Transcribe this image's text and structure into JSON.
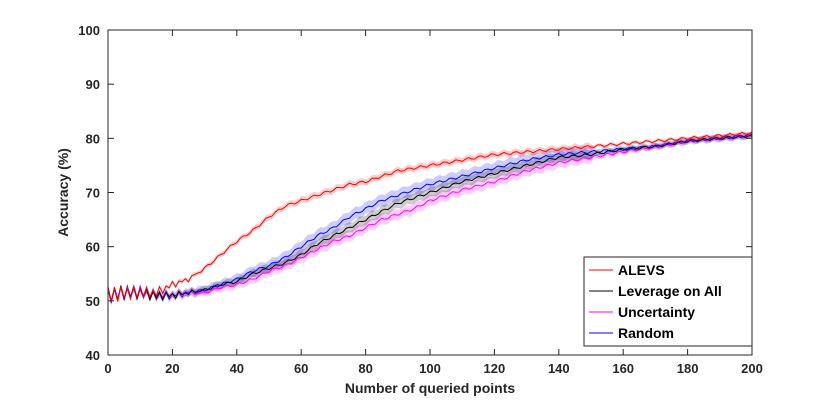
{
  "chart_data": {
    "type": "line",
    "title": "",
    "xlabel": "Number of queried points",
    "ylabel": "Accuracy (%)",
    "xlim": [
      0,
      200
    ],
    "ylim": [
      40,
      100
    ],
    "xticks": [
      0,
      20,
      40,
      60,
      80,
      100,
      120,
      140,
      160,
      180,
      200
    ],
    "yticks": [
      40,
      50,
      60,
      70,
      80,
      90,
      100
    ],
    "grid": false,
    "legend_position": "bottom-right",
    "x": [
      0,
      5,
      10,
      15,
      20,
      25,
      30,
      35,
      40,
      45,
      50,
      55,
      60,
      65,
      70,
      75,
      80,
      85,
      90,
      95,
      100,
      110,
      120,
      130,
      140,
      150,
      160,
      170,
      180,
      190,
      200
    ],
    "series": [
      {
        "name": "ALEVS",
        "color": "#ff0000",
        "values": [
          51,
          51.5,
          51.5,
          51.5,
          53,
          54,
          56,
          58.5,
          61,
          63,
          65.5,
          67.5,
          68.5,
          69.5,
          70.5,
          71.5,
          72,
          73,
          74,
          74.5,
          75,
          76,
          77,
          77.5,
          78,
          78.5,
          79,
          79.5,
          80,
          80.5,
          81
        ],
        "band": 0.6
      },
      {
        "name": "Leverage on All",
        "color": "#000000",
        "values": [
          51,
          51.5,
          51.5,
          51,
          51,
          51.5,
          52,
          53,
          53.5,
          55,
          56,
          57,
          58.5,
          60.5,
          62,
          63.5,
          65,
          66.5,
          68,
          69,
          70,
          72,
          73.5,
          75,
          76.5,
          77,
          78,
          78.5,
          79.5,
          80,
          80.5
        ],
        "band": 0.9
      },
      {
        "name": "Uncertainty",
        "color": "#ff00ff",
        "values": [
          51,
          51.5,
          51.5,
          51,
          51,
          51.5,
          51.5,
          52.5,
          53,
          54,
          55.5,
          56.5,
          58,
          59.5,
          61,
          62,
          63.5,
          65,
          66,
          67,
          68.5,
          70.5,
          72,
          74,
          75.5,
          76.5,
          77.5,
          78.5,
          79.5,
          80,
          80.5
        ],
        "band": 1.0
      },
      {
        "name": "Random",
        "color": "#0000ff",
        "values": [
          51,
          51.5,
          51.5,
          51,
          51,
          51.5,
          52,
          53,
          54,
          55.5,
          56.5,
          58,
          60,
          62,
          63.5,
          65.5,
          67,
          68.5,
          69.5,
          70.5,
          71.5,
          73,
          74.5,
          76,
          77,
          77.5,
          78,
          78.5,
          79.5,
          80,
          80.5
        ],
        "band": 1.1
      }
    ]
  }
}
